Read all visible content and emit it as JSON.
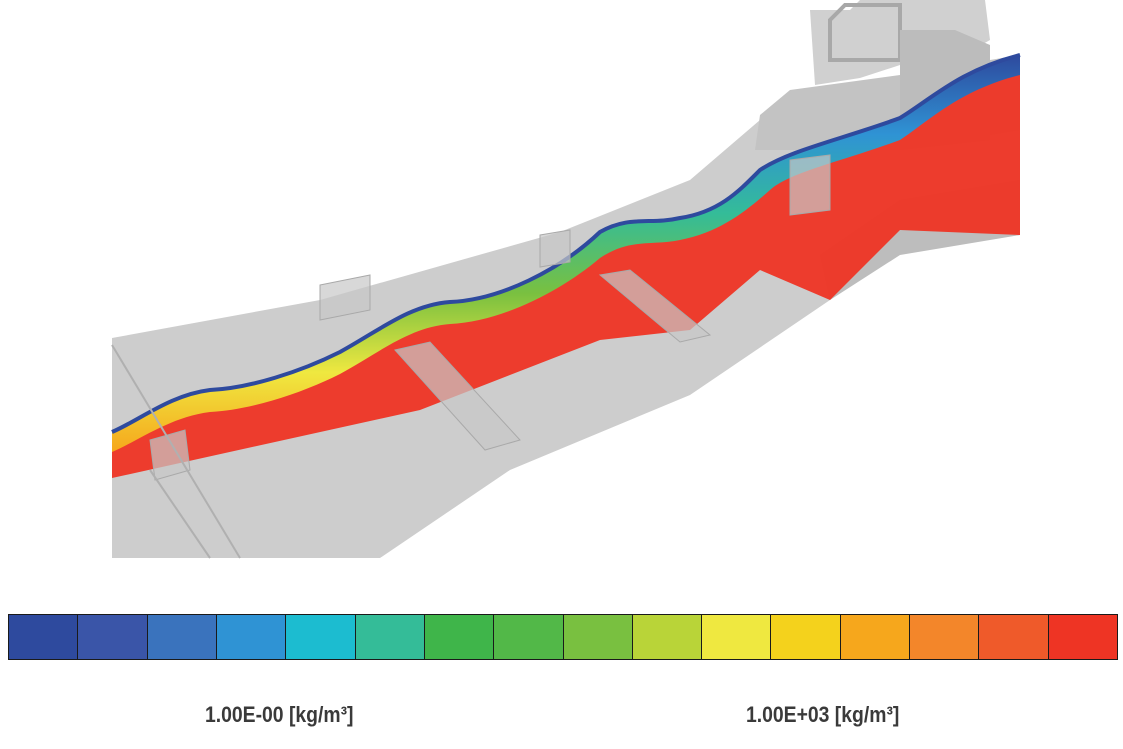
{
  "legend": {
    "min_label": "1.00E-00 [kg/m³]",
    "max_label": "1.00E+03 [kg/m³]",
    "colors": [
      "#2e4a9e",
      "#3a55a8",
      "#3a73bd",
      "#2f93d4",
      "#1cbcd0",
      "#34bc98",
      "#3fb54a",
      "#52b848",
      "#79c040",
      "#b9d438",
      "#efe840",
      "#f4d21c",
      "#f6a71c",
      "#f3862a",
      "#ef5a2a",
      "#ee3424"
    ]
  },
  "scene": {
    "structure_color": "#c9c9c9",
    "structure_dark": "#b4b4b4",
    "fluid_color": "#ee3424"
  }
}
